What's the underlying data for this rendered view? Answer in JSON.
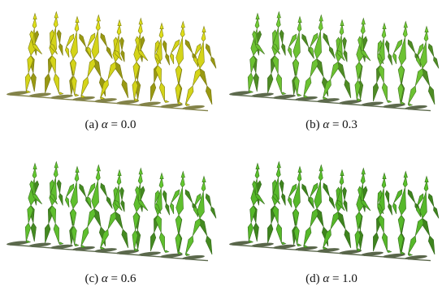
{
  "figure": {
    "panels": [
      {
        "id": "a",
        "label": "(a)",
        "symbol": "α",
        "equals": "= 0.0",
        "color": "#d4d419",
        "shadow": "#6e6e2a"
      },
      {
        "id": "b",
        "label": "(b)",
        "symbol": "α",
        "equals": "= 0.3",
        "color": "#6cc232",
        "shadow": "#41512f"
      },
      {
        "id": "c",
        "label": "(c)",
        "symbol": "α",
        "equals": "= 0.6",
        "color": "#5fbf2e",
        "shadow": "#3f4f2d"
      },
      {
        "id": "d",
        "label": "(d)",
        "symbol": "α",
        "equals": "= 1.0",
        "color": "#56b82a",
        "shadow": "#3d4c2b"
      }
    ]
  }
}
